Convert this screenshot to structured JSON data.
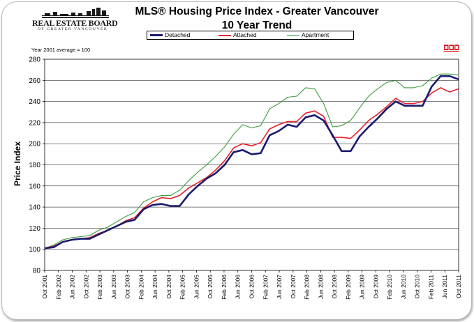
{
  "logo": {
    "name": "REAL ESTATE BOARD",
    "sub": "OF GREATER VANCOUVER"
  },
  "title_line1": "MLS®  Housing Price Index - Greater Vancouver",
  "title_line2": "10 Year Trend",
  "note": "Year 2001 average = 100",
  "colors": {
    "detached": "#1a1a6e",
    "attached": "#e8202a",
    "apartment": "#3a9b3a",
    "grid": "#000000"
  },
  "chart_data": {
    "type": "line",
    "title": "MLS®  Housing Price Index - Greater Vancouver",
    "subtitle": "10 Year Trend",
    "ylabel": "Price Index",
    "xlabel": "",
    "ylim": [
      80,
      280
    ],
    "yticks": [
      80,
      100,
      120,
      140,
      160,
      180,
      200,
      220,
      240,
      260,
      280
    ],
    "xticks": [
      "Oct 2001",
      "Feb 2002",
      "Jun 2002",
      "Oct 2002",
      "Feb 2003",
      "Jun 2003",
      "Oct 2003",
      "Feb 2004",
      "Jun 2004",
      "Oct 2004",
      "Feb 2005",
      "Jun 2005",
      "Oct 2005",
      "Feb 2006",
      "Jun 2006",
      "Oct 2006",
      "Feb 2007",
      "Jun 2007",
      "Oct 2007",
      "Feb 2008",
      "Jun 2008",
      "Oct 2008",
      "Feb 2009",
      "Jun 2009",
      "Oct 2009",
      "Feb 2010",
      "Jun 2010",
      "Oct 2010",
      "Feb 2011",
      "Jun 2011",
      "Oct 2011"
    ],
    "grid": "horizontal",
    "legend_position": "top",
    "series": [
      {
        "name": "Detached",
        "color": "#1a1a6e",
        "width": 2.6,
        "values": [
          101,
          102,
          107,
          109,
          110,
          110,
          114,
          118,
          122,
          126,
          128,
          138,
          142,
          143,
          141,
          141,
          152,
          160,
          167,
          172,
          180,
          192,
          194,
          190,
          191,
          208,
          212,
          218,
          216,
          225,
          227,
          222,
          208,
          193,
          193,
          207,
          216,
          224,
          233,
          240,
          236,
          236,
          236,
          254,
          264,
          264,
          261
        ]
      },
      {
        "name": "Attached",
        "color": "#e8202a",
        "width": 1.6,
        "values": [
          101,
          103,
          107,
          109,
          110,
          111,
          115,
          118,
          122,
          127,
          130,
          139,
          145,
          149,
          148,
          151,
          158,
          163,
          168,
          175,
          184,
          196,
          200,
          198,
          201,
          214,
          218,
          221,
          221,
          229,
          231,
          226,
          206,
          206,
          205,
          213,
          222,
          228,
          235,
          243,
          238,
          238,
          240,
          248,
          253,
          249,
          252
        ]
      },
      {
        "name": "Apartment",
        "color": "#3a9b3a",
        "width": 1.1,
        "values": [
          101,
          104,
          109,
          111,
          112,
          113,
          118,
          121,
          126,
          131,
          135,
          145,
          149,
          151,
          151,
          156,
          165,
          173,
          180,
          188,
          197,
          209,
          218,
          215,
          217,
          233,
          238,
          244,
          245,
          253,
          252,
          238,
          216,
          217,
          222,
          234,
          245,
          252,
          258,
          260,
          253,
          253,
          255,
          262,
          266,
          266,
          265
        ]
      }
    ]
  }
}
